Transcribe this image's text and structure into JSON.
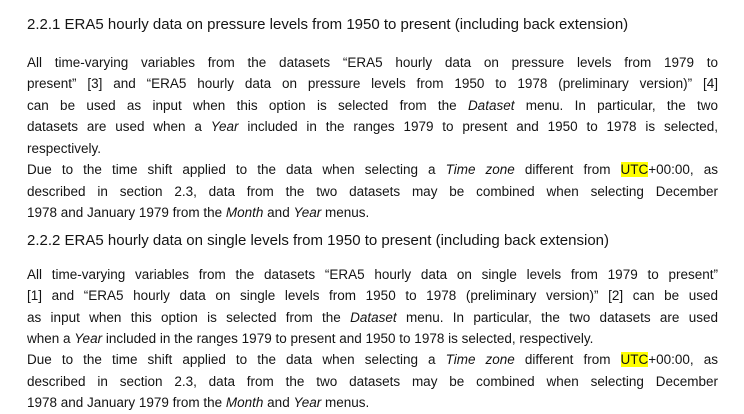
{
  "page": {
    "background": "#ffffff",
    "text_color": "#141414",
    "highlight_color": "#ffff00"
  },
  "sections": [
    {
      "heading": "2.2.1 ERA5 hourly data on pressure levels from 1950 to present (including back extension)",
      "lines": [
        {
          "justify": true,
          "segments": [
            {
              "t": "All time-varying variables from the datasets “ERA5 hourly data on pressure levels from 1979 to"
            }
          ]
        },
        {
          "justify": true,
          "segments": [
            {
              "t": "present” [3] and “ERA5 hourly data on pressure levels from 1950 to 1978 (preliminary version)” [4]"
            }
          ]
        },
        {
          "justify": true,
          "segments": [
            {
              "t": "can be used as input when this option is selected from the "
            },
            {
              "t": "Dataset",
              "s": "i"
            },
            {
              "t": " menu. In particular, the two"
            }
          ]
        },
        {
          "justify": true,
          "segments": [
            {
              "t": "datasets are used when a "
            },
            {
              "t": "Year",
              "s": "i"
            },
            {
              "t": " included in the ranges 1979 to present and 1950 to 1978 is selected,"
            }
          ]
        },
        {
          "justify": false,
          "segments": [
            {
              "t": "respectively."
            }
          ]
        },
        {
          "justify": true,
          "segments": [
            {
              "t": "Due to the time shift applied to the data when selecting a "
            },
            {
              "t": "Time zone",
              "s": "i"
            },
            {
              "t": " different from "
            },
            {
              "t": "UTC",
              "s": "hl"
            },
            {
              "t": "+00:00, as"
            }
          ]
        },
        {
          "justify": true,
          "segments": [
            {
              "t": "described in section 2.3, data from the two datasets may be combined when selecting December"
            }
          ]
        },
        {
          "justify": false,
          "segments": [
            {
              "t": "1978 and January 1979 from the "
            },
            {
              "t": "Month",
              "s": "i"
            },
            {
              "t": " and "
            },
            {
              "t": "Year",
              "s": "i"
            },
            {
              "t": " menus."
            }
          ]
        }
      ]
    },
    {
      "heading": "2.2.2 ERA5 hourly data on single levels from 1950 to present (including back extension)",
      "lines": [
        {
          "justify": true,
          "segments": [
            {
              "t": "All time-varying variables from the datasets “ERA5 hourly data on single levels from 1979 to present”"
            }
          ]
        },
        {
          "justify": true,
          "segments": [
            {
              "t": "[1] and “ERA5 hourly data on single levels from 1950 to 1978 (preliminary version)” [2] can be used"
            }
          ]
        },
        {
          "justify": true,
          "segments": [
            {
              "t": "as input when this option is selected from the "
            },
            {
              "t": "Dataset",
              "s": "i"
            },
            {
              "t": " menu. In particular, the two datasets are used"
            }
          ]
        },
        {
          "justify": false,
          "segments": [
            {
              "t": "when a "
            },
            {
              "t": "Year",
              "s": "i"
            },
            {
              "t": " included in the ranges 1979 to present and 1950 to 1978 is selected, respectively."
            }
          ]
        },
        {
          "justify": true,
          "segments": [
            {
              "t": "Due to the time shift applied to the data when selecting a "
            },
            {
              "t": "Time zone",
              "s": "i"
            },
            {
              "t": " different from "
            },
            {
              "t": "UTC",
              "s": "hl"
            },
            {
              "t": "+00:00, as"
            }
          ]
        },
        {
          "justify": true,
          "segments": [
            {
              "t": "described in section 2.3, data from the two datasets may be combined when selecting December"
            }
          ]
        },
        {
          "justify": false,
          "segments": [
            {
              "t": "1978 and January 1979 from the "
            },
            {
              "t": "Month",
              "s": "i"
            },
            {
              "t": " and "
            },
            {
              "t": "Year",
              "s": "i"
            },
            {
              "t": " menus."
            }
          ]
        }
      ]
    }
  ]
}
